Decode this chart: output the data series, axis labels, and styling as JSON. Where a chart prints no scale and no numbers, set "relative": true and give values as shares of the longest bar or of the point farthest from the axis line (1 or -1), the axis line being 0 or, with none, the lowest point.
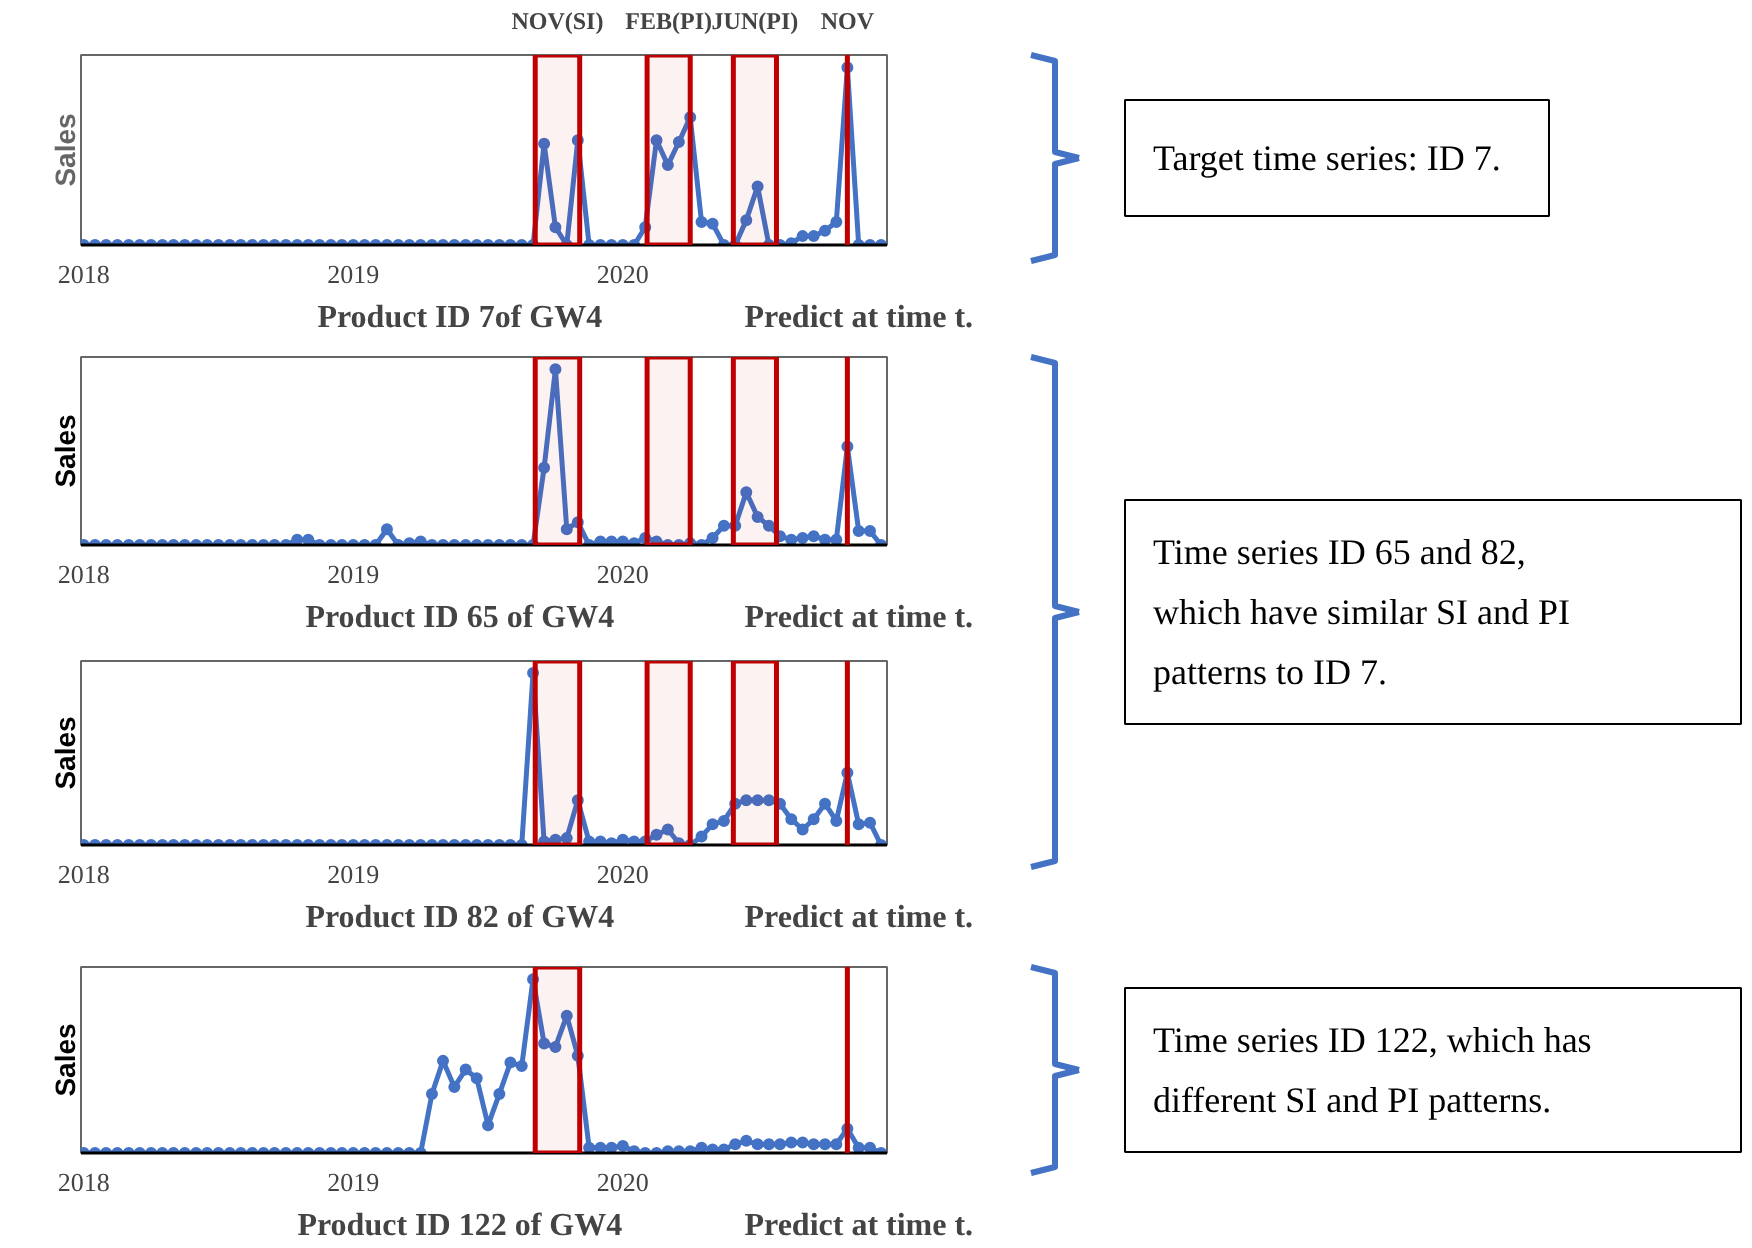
{
  "chart_data": [
    {
      "type": "line",
      "xlabel": "Product ID 7of GW4",
      "ylabel": "Sales",
      "relative": true,
      "marker": "circle",
      "xlim": [
        2017.99,
        2020.98
      ],
      "xticks": [
        2018,
        2019,
        2020
      ],
      "x": [
        2018,
        2018.042,
        2018.083,
        2018.125,
        2018.167,
        2018.208,
        2018.25,
        2018.292,
        2018.333,
        2018.375,
        2018.417,
        2018.458,
        2018.5,
        2018.542,
        2018.583,
        2018.625,
        2018.667,
        2018.708,
        2018.75,
        2018.792,
        2018.833,
        2018.875,
        2018.917,
        2018.958,
        2019,
        2019.042,
        2019.083,
        2019.125,
        2019.167,
        2019.208,
        2019.25,
        2019.292,
        2019.333,
        2019.375,
        2019.417,
        2019.458,
        2019.5,
        2019.542,
        2019.583,
        2019.625,
        2019.667,
        2019.708,
        2019.75,
        2019.792,
        2019.833,
        2019.875,
        2019.917,
        2019.958,
        2020,
        2020.042,
        2020.083,
        2020.125,
        2020.167,
        2020.208,
        2020.25,
        2020.292,
        2020.333,
        2020.375,
        2020.417,
        2020.458,
        2020.5,
        2020.542,
        2020.583,
        2020.625,
        2020.667,
        2020.708,
        2020.75,
        2020.792,
        2020.833,
        2020.875,
        2020.917,
        2020.958
      ],
      "series": [
        {
          "color": "#4472c4",
          "values": [
            0,
            0,
            0,
            0,
            0,
            0,
            0,
            0,
            0,
            0,
            0,
            0,
            0,
            0,
            0,
            0,
            0,
            0,
            0,
            0,
            0,
            0,
            0,
            0,
            0,
            0,
            0,
            0,
            0,
            0,
            0,
            0,
            0,
            0,
            0,
            0,
            0,
            0,
            0,
            0,
            0,
            0.57,
            0.1,
            0,
            0.59,
            0,
            0,
            0,
            0,
            0,
            0.1,
            0.59,
            0.45,
            0.58,
            0.72,
            0.13,
            0.12,
            0,
            0,
            0.14,
            0.33,
            0,
            0,
            0.01,
            0.05,
            0.05,
            0.08,
            0.13,
            1,
            0,
            0,
            0
          ]
        }
      ],
      "bands": [
        {
          "axis": "x",
          "from": 2019.675,
          "to": 2019.84,
          "label": "NOV(SI)",
          "color": "#c00000"
        },
        {
          "axis": "x",
          "from": 2020.09,
          "to": 2020.25,
          "label": "FEB(PI)",
          "color": "#c00000"
        },
        {
          "axis": "x",
          "from": 2020.41,
          "to": 2020.57,
          "label": "JUN(PI)",
          "color": "#c00000"
        }
      ],
      "ref_lines": [
        {
          "axis": "x",
          "value": 2020.833,
          "label": "NOV",
          "color": "#c00000"
        }
      ],
      "annotations": [
        "Predict at time t.",
        "Target time series: ID 7."
      ]
    },
    {
      "type": "line",
      "xlabel": "Product ID 65 of GW4",
      "ylabel": "Sales",
      "relative": true,
      "marker": "circle",
      "xlim": [
        2017.99,
        2020.98
      ],
      "xticks": [
        2018,
        2019,
        2020
      ],
      "x": [
        2018,
        2018.042,
        2018.083,
        2018.125,
        2018.167,
        2018.208,
        2018.25,
        2018.292,
        2018.333,
        2018.375,
        2018.417,
        2018.458,
        2018.5,
        2018.542,
        2018.583,
        2018.625,
        2018.667,
        2018.708,
        2018.75,
        2018.792,
        2018.833,
        2018.875,
        2018.917,
        2018.958,
        2019,
        2019.042,
        2019.083,
        2019.125,
        2019.167,
        2019.208,
        2019.25,
        2019.292,
        2019.333,
        2019.375,
        2019.417,
        2019.458,
        2019.5,
        2019.542,
        2019.583,
        2019.625,
        2019.667,
        2019.708,
        2019.75,
        2019.792,
        2019.833,
        2019.875,
        2019.917,
        2019.958,
        2020,
        2020.042,
        2020.083,
        2020.125,
        2020.167,
        2020.208,
        2020.25,
        2020.292,
        2020.333,
        2020.375,
        2020.417,
        2020.458,
        2020.5,
        2020.542,
        2020.583,
        2020.625,
        2020.667,
        2020.708,
        2020.75,
        2020.792,
        2020.833,
        2020.875,
        2020.917,
        2020.958
      ],
      "series": [
        {
          "color": "#4472c4",
          "values": [
            0,
            0,
            0,
            0,
            0,
            0,
            0,
            0,
            0,
            0,
            0,
            0,
            0,
            0,
            0,
            0,
            0,
            0,
            0,
            0.03,
            0.03,
            0,
            0,
            0,
            0,
            0,
            0,
            0.09,
            0,
            0.01,
            0.02,
            0,
            0,
            0,
            0,
            0,
            0,
            0,
            0,
            0,
            0,
            0.44,
            1,
            0.09,
            0.13,
            0,
            0.02,
            0.02,
            0.02,
            0.01,
            0.04,
            0.02,
            0,
            0,
            0.01,
            0,
            0.04,
            0.11,
            0.11,
            0.3,
            0.16,
            0.11,
            0.05,
            0.03,
            0.04,
            0.05,
            0.03,
            0.03,
            0.56,
            0.08,
            0.08,
            0
          ]
        }
      ],
      "bands": [
        {
          "axis": "x",
          "from": 2019.675,
          "to": 2019.84,
          "color": "#c00000"
        },
        {
          "axis": "x",
          "from": 2020.09,
          "to": 2020.25,
          "color": "#c00000"
        },
        {
          "axis": "x",
          "from": 2020.41,
          "to": 2020.57,
          "color": "#c00000"
        }
      ],
      "ref_lines": [
        {
          "axis": "x",
          "value": 2020.833,
          "color": "#c00000"
        }
      ],
      "annotations": [
        "Predict at time t.",
        "Time series ID 65 and 82, which have similar SI and PI patterns to ID 7."
      ]
    },
    {
      "type": "line",
      "xlabel": "Product ID 82 of GW4",
      "ylabel": "Sales",
      "relative": true,
      "marker": "circle",
      "xlim": [
        2017.99,
        2020.98
      ],
      "xticks": [
        2018,
        2019,
        2020
      ],
      "x": [
        2018,
        2018.042,
        2018.083,
        2018.125,
        2018.167,
        2018.208,
        2018.25,
        2018.292,
        2018.333,
        2018.375,
        2018.417,
        2018.458,
        2018.5,
        2018.542,
        2018.583,
        2018.625,
        2018.667,
        2018.708,
        2018.75,
        2018.792,
        2018.833,
        2018.875,
        2018.917,
        2018.958,
        2019,
        2019.042,
        2019.083,
        2019.125,
        2019.167,
        2019.208,
        2019.25,
        2019.292,
        2019.333,
        2019.375,
        2019.417,
        2019.458,
        2019.5,
        2019.542,
        2019.583,
        2019.625,
        2019.667,
        2019.708,
        2019.75,
        2019.792,
        2019.833,
        2019.875,
        2019.917,
        2019.958,
        2020,
        2020.042,
        2020.083,
        2020.125,
        2020.167,
        2020.208,
        2020.25,
        2020.292,
        2020.333,
        2020.375,
        2020.417,
        2020.458,
        2020.5,
        2020.542,
        2020.583,
        2020.625,
        2020.667,
        2020.708,
        2020.75,
        2020.792,
        2020.833,
        2020.875,
        2020.917,
        2020.958
      ],
      "series": [
        {
          "color": "#4472c4",
          "values": [
            0,
            0,
            0,
            0,
            0,
            0,
            0,
            0,
            0,
            0,
            0,
            0,
            0,
            0,
            0,
            0,
            0,
            0,
            0,
            0,
            0,
            0,
            0,
            0,
            0,
            0,
            0,
            0,
            0,
            0,
            0,
            0,
            0,
            0,
            0,
            0,
            0,
            0,
            0,
            0,
            1,
            0.02,
            0.03,
            0.04,
            0.26,
            0.02,
            0.02,
            0.01,
            0.03,
            0.02,
            0.02,
            0.06,
            0.09,
            0.01,
            0,
            0.05,
            0.12,
            0.14,
            0.24,
            0.26,
            0.26,
            0.26,
            0.24,
            0.15,
            0.09,
            0.15,
            0.24,
            0.14,
            0.42,
            0.12,
            0.13,
            0
          ]
        }
      ],
      "bands": [
        {
          "axis": "x",
          "from": 2019.675,
          "to": 2019.84,
          "color": "#c00000"
        },
        {
          "axis": "x",
          "from": 2020.09,
          "to": 2020.25,
          "color": "#c00000"
        },
        {
          "axis": "x",
          "from": 2020.41,
          "to": 2020.57,
          "color": "#c00000"
        }
      ],
      "ref_lines": [
        {
          "axis": "x",
          "value": 2020.833,
          "color": "#c00000"
        }
      ],
      "annotations": [
        "Predict at time t."
      ]
    },
    {
      "type": "line",
      "xlabel": "Product ID 122 of GW4",
      "ylabel": "Sales",
      "relative": true,
      "marker": "circle",
      "xlim": [
        2017.99,
        2020.98
      ],
      "xticks": [
        2018,
        2019,
        2020
      ],
      "x": [
        2018,
        2018.042,
        2018.083,
        2018.125,
        2018.167,
        2018.208,
        2018.25,
        2018.292,
        2018.333,
        2018.375,
        2018.417,
        2018.458,
        2018.5,
        2018.542,
        2018.583,
        2018.625,
        2018.667,
        2018.708,
        2018.75,
        2018.792,
        2018.833,
        2018.875,
        2018.917,
        2018.958,
        2019,
        2019.042,
        2019.083,
        2019.125,
        2019.167,
        2019.208,
        2019.25,
        2019.292,
        2019.333,
        2019.375,
        2019.417,
        2019.458,
        2019.5,
        2019.542,
        2019.583,
        2019.625,
        2019.667,
        2019.708,
        2019.75,
        2019.792,
        2019.833,
        2019.875,
        2019.917,
        2019.958,
        2020,
        2020.042,
        2020.083,
        2020.125,
        2020.167,
        2020.208,
        2020.25,
        2020.292,
        2020.333,
        2020.375,
        2020.417,
        2020.458,
        2020.5,
        2020.542,
        2020.583,
        2020.625,
        2020.667,
        2020.708,
        2020.75,
        2020.792,
        2020.833,
        2020.875,
        2020.917,
        2020.958
      ],
      "series": [
        {
          "color": "#4472c4",
          "values": [
            0,
            0,
            0,
            0,
            0,
            0,
            0,
            0,
            0,
            0,
            0,
            0,
            0,
            0,
            0,
            0,
            0,
            0,
            0,
            0,
            0,
            0,
            0,
            0,
            0,
            0,
            0,
            0,
            0,
            0,
            0,
            0.34,
            0.53,
            0.38,
            0.48,
            0.43,
            0.16,
            0.34,
            0.52,
            0.5,
            1,
            0.63,
            0.61,
            0.79,
            0.56,
            0.03,
            0.03,
            0.03,
            0.04,
            0.01,
            0,
            0,
            0.01,
            0.01,
            0.01,
            0.03,
            0.02,
            0.02,
            0.05,
            0.07,
            0.05,
            0.05,
            0.05,
            0.06,
            0.06,
            0.05,
            0.05,
            0.05,
            0.14,
            0.03,
            0.03,
            0
          ]
        }
      ],
      "bands": [
        {
          "axis": "x",
          "from": 2019.675,
          "to": 2019.84,
          "color": "#c00000"
        }
      ],
      "ref_lines": [
        {
          "axis": "x",
          "value": 2020.833,
          "color": "#c00000"
        }
      ],
      "annotations": [
        "Predict at time t.",
        "Time series ID 122, which has different SI and PI patterns."
      ]
    }
  ]
}
